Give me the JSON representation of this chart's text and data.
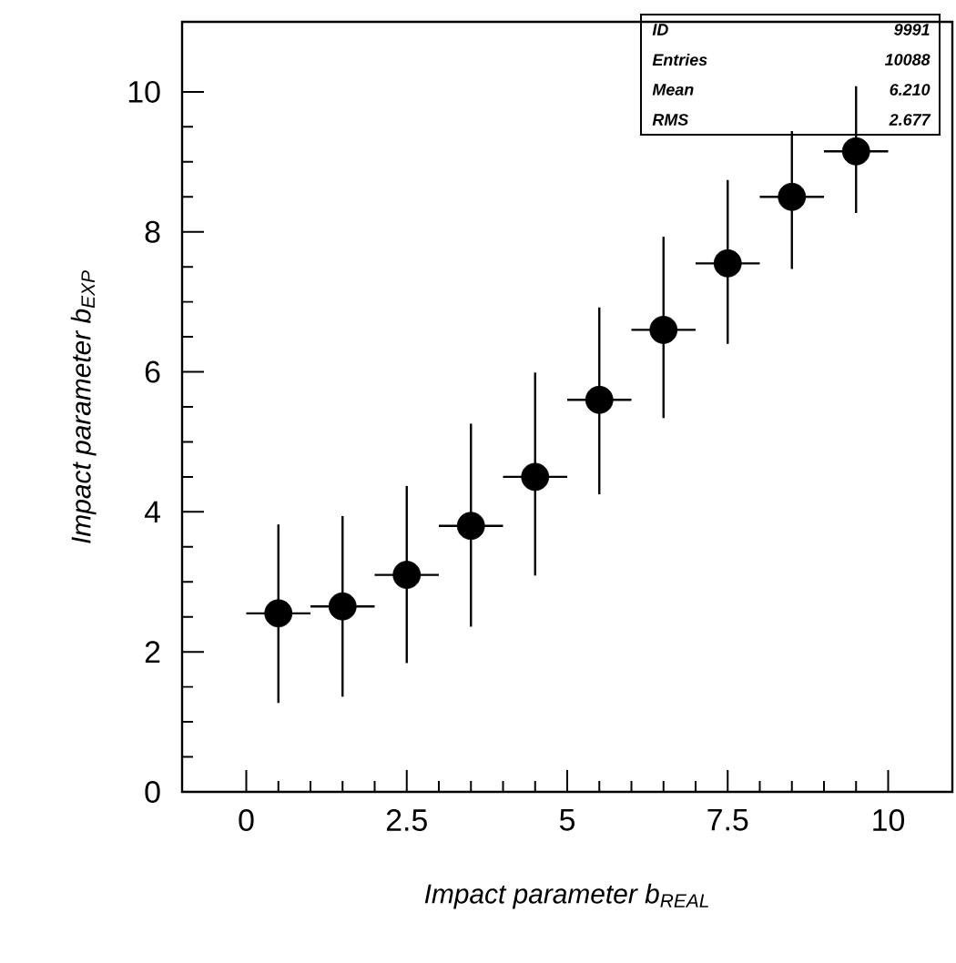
{
  "chart_data": {
    "type": "scatter",
    "xlabel": "Impact parameter b$_{REAL}$",
    "ylabel": "Impact parameter b$_{EXP}$",
    "x": [
      0.5,
      1.5,
      2.5,
      3.5,
      4.5,
      5.5,
      6.5,
      7.5,
      8.5,
      9.5
    ],
    "series": [
      {
        "color": "#000000",
        "values": [
          2.55,
          2.65,
          3.1,
          3.8,
          4.5,
          5.6,
          6.6,
          7.55,
          8.5,
          9.15
        ],
        "errors": [
          [
            1.27,
            3.82
          ],
          [
            1.36,
            3.94
          ],
          [
            1.84,
            4.37
          ],
          [
            2.36,
            5.26
          ],
          [
            3.09,
            5.99
          ],
          [
            4.25,
            6.92
          ],
          [
            5.34,
            7.93
          ],
          [
            6.4,
            8.74
          ],
          [
            7.47,
            9.44
          ],
          [
            8.27,
            10.08
          ]
        ],
        "xerrors": [
          0.5,
          0.5,
          0.5,
          0.5,
          0.5,
          0.5,
          0.5,
          0.5,
          0.5,
          0.5
        ]
      }
    ],
    "marker": "circle",
    "xlim": [
      -1,
      11
    ],
    "ylim": [
      0,
      11
    ],
    "xticks": [
      0,
      2.5,
      5,
      7.5,
      10
    ],
    "yticks": [
      0,
      2,
      4,
      6,
      8,
      10
    ],
    "grid": false,
    "annotations": [
      "ID",
      "9991",
      "Entries",
      "10088",
      "Mean",
      "6.210",
      "RMS",
      "2.677"
    ]
  }
}
